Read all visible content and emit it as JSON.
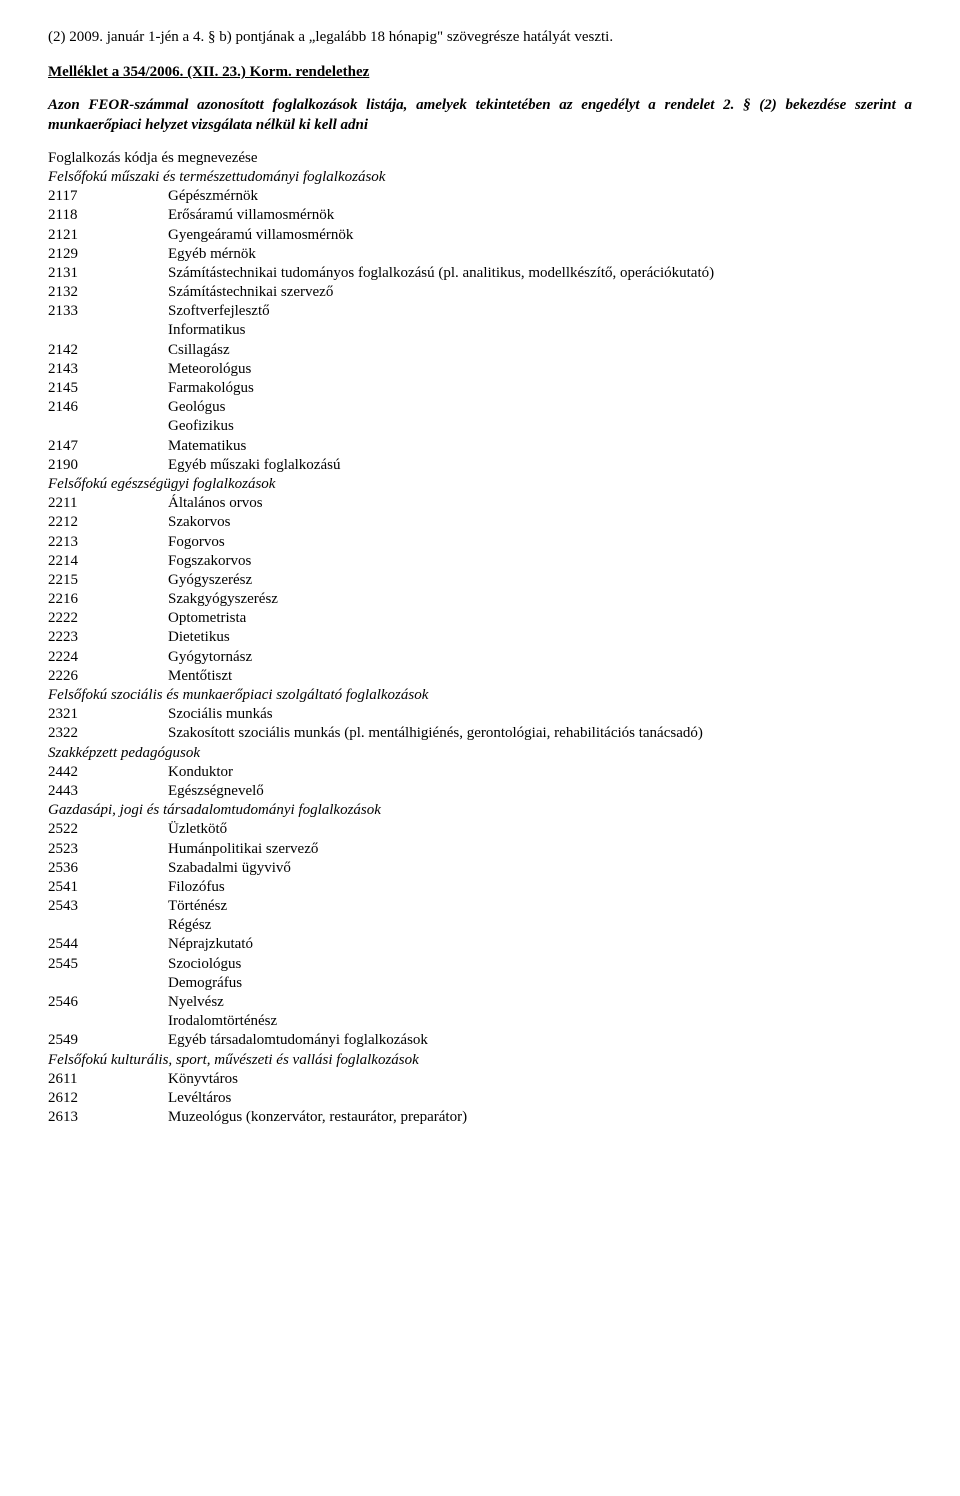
{
  "topNote": "(2) 2009. január 1-jén a 4. § b) pontjának a „legalább 18 hónapig\" szövegrésze hatályát veszti.",
  "attachmentTitle": "Melléklet a 354/2006. (XII. 23.) Korm. rendelethez",
  "lead": "Azon FEOR-számmal azonosított foglalkozások listája, amelyek tekintetében az engedélyt a rendelet 2. § (2) bekezdése szerint a munkaerőpiaci helyzet vizsgálata nélkül ki kell adni",
  "listHeader": "Foglalkozás kódja és megnevezése",
  "sections": [
    {
      "heading": "Felsőfokú műszaki és természettudományi foglalkozások",
      "items": [
        {
          "code": "2117",
          "name": "Gépészmérnök"
        },
        {
          "code": "2118",
          "name": "Erősáramú villamosmérnök"
        },
        {
          "code": "2121",
          "name": "Gyengeáramú villamosmérnök"
        },
        {
          "code": "2129",
          "name": "Egyéb mérnök"
        },
        {
          "code": "2131",
          "name": "Számítástechnikai tudományos foglalkozású (pl. analitikus, modellkészítő, operációkutató)"
        },
        {
          "code": "2132",
          "name": "Számítástechnikai szervező"
        },
        {
          "code": "2133",
          "name": "Szoftverfejlesztő\nInformatikus"
        },
        {
          "code": "2142",
          "name": "Csillagász"
        },
        {
          "code": "2143",
          "name": "Meteorológus"
        },
        {
          "code": "2145",
          "name": "Farmakológus"
        },
        {
          "code": "2146",
          "name": "Geológus\nGeofizikus"
        },
        {
          "code": "2147",
          "name": "Matematikus"
        },
        {
          "code": "2190",
          "name": "Egyéb műszaki foglalkozású"
        }
      ]
    },
    {
      "heading": "Felsőfokú egészségügyi foglalkozások",
      "items": [
        {
          "code": "2211",
          "name": "Általános orvos"
        },
        {
          "code": "2212",
          "name": "Szakorvos"
        },
        {
          "code": "2213",
          "name": "Fogorvos"
        },
        {
          "code": "2214",
          "name": "Fogszakorvos"
        },
        {
          "code": "2215",
          "name": "Gyógyszerész"
        },
        {
          "code": "2216",
          "name": "Szakgyógyszerész"
        },
        {
          "code": "2222",
          "name": "Optometrista"
        },
        {
          "code": "2223",
          "name": "Dietetikus"
        },
        {
          "code": "2224",
          "name": "Gyógytornász"
        },
        {
          "code": "2226",
          "name": "Mentőtiszt"
        }
      ]
    },
    {
      "heading": "Felsőfokú szociális és munkaerőpiaci szolgáltató foglalkozások",
      "items": [
        {
          "code": "2321",
          "name": "Szociális munkás"
        },
        {
          "code": "2322",
          "name": "Szakosított szociális munkás (pl. mentálhigiénés, gerontológiai, rehabilitációs tanácsadó)"
        }
      ]
    },
    {
      "heading": "Szakképzett pedagógusok",
      "items": [
        {
          "code": "2442",
          "name": "Konduktor"
        },
        {
          "code": "2443",
          "name": "Egészségnevelő"
        }
      ]
    },
    {
      "heading": "Gazdasápi, jogi és társadalomtudományi foglalkozások",
      "items": [
        {
          "code": "2522",
          "name": "Üzletkötő"
        },
        {
          "code": "2523",
          "name": "Humánpolitikai szervező"
        },
        {
          "code": "2536",
          "name": "Szabadalmi ügyvivő"
        },
        {
          "code": "2541",
          "name": "Filozófus"
        },
        {
          "code": "2543",
          "name": "Történész\nRégész"
        },
        {
          "code": "2544",
          "name": "Néprajzkutató"
        },
        {
          "code": "2545",
          "name": "Szociológus\nDemográfus"
        },
        {
          "code": "2546",
          "name": "Nyelvész\nIrodalomtörténész"
        },
        {
          "code": "2549",
          "name": "Egyéb társadalomtudományi foglalkozások"
        }
      ]
    },
    {
      "heading": "Felsőfokú kulturális, sport, művészeti és vallási foglalkozások",
      "items": [
        {
          "code": "2611",
          "name": "Könyvtáros"
        },
        {
          "code": "2612",
          "name": "Levéltáros"
        },
        {
          "code": "2613",
          "name": "Muzeológus (konzervátor, restaurátor, preparátor)"
        }
      ]
    }
  ]
}
